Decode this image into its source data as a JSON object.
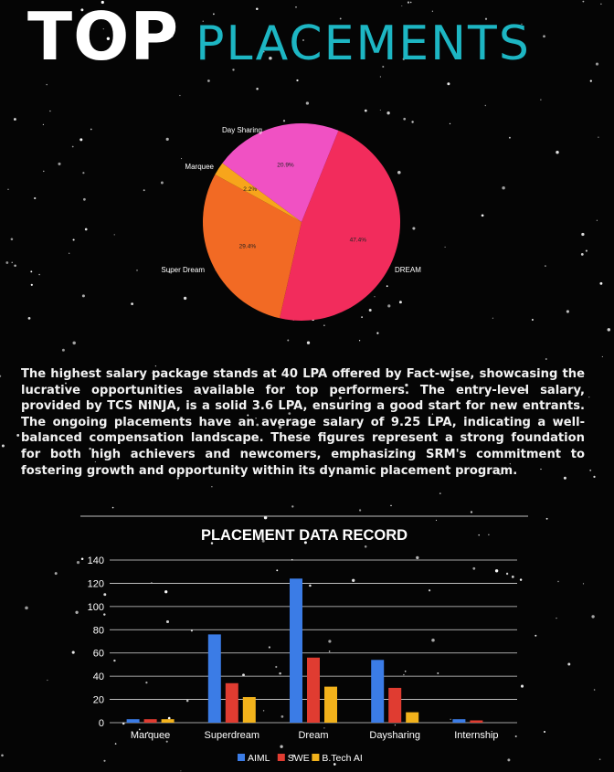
{
  "header": {
    "title_word1": "TOP",
    "title_word2": "PLACEMENTS"
  },
  "colors": {
    "accent": "#1db6c3",
    "background": "#050505",
    "aiml": "#3b7ce6",
    "swe": "#e03c31",
    "btech_ai": "#f2b21b"
  },
  "paragraph": "The highest salary package stands at 40 LPA offered by Fact-wise, showcasing the lucrative opportunities available for top performers. The entry-level salary, provided by TCS NINJA, is a solid 3.6 LPA, ensuring a good start for new entrants. The ongoing placements have an average salary of 9.25 LPA, indicating a well-balanced compensation landscape. These figures represent a strong foundation for both high achievers and newcomers, emphasizing SRM's commitment to fostering growth and opportunity within its dynamic placement program.",
  "chart_data": [
    {
      "type": "pie",
      "slices": [
        {
          "label": "DREAM",
          "value": 47.4,
          "value_label": "47.4%",
          "color": "#f22c5c"
        },
        {
          "label": "Super Dream",
          "value": 29.4,
          "value_label": "29.4%",
          "color": "#f26a24"
        },
        {
          "label": "Marquee",
          "value": 2.2,
          "value_label": "2.2%",
          "color": "#f7a51b"
        },
        {
          "label": "Day Sharing",
          "value": 20.9,
          "value_label": "20.9%",
          "color": "#f051c3"
        }
      ]
    },
    {
      "type": "bar",
      "title": "PLACEMENT DATA RECORD",
      "categories": [
        "Marquee",
        "Superdream",
        "Dream",
        "Daysharing",
        "Internship"
      ],
      "series": [
        {
          "name": "AIML",
          "values": [
            3,
            76,
            124,
            54,
            3
          ],
          "color": "#3b7ce6"
        },
        {
          "name": "SWE",
          "values": [
            3,
            34,
            56,
            30,
            2
          ],
          "color": "#e03c31"
        },
        {
          "name": "B.Tech AI",
          "values": [
            3,
            22,
            31,
            9,
            0
          ],
          "color": "#f2b21b"
        }
      ],
      "ylim": [
        0,
        140
      ],
      "yticks": [
        0,
        20,
        40,
        60,
        80,
        100,
        120,
        140
      ],
      "grid": true,
      "legend": "bottom"
    }
  ]
}
